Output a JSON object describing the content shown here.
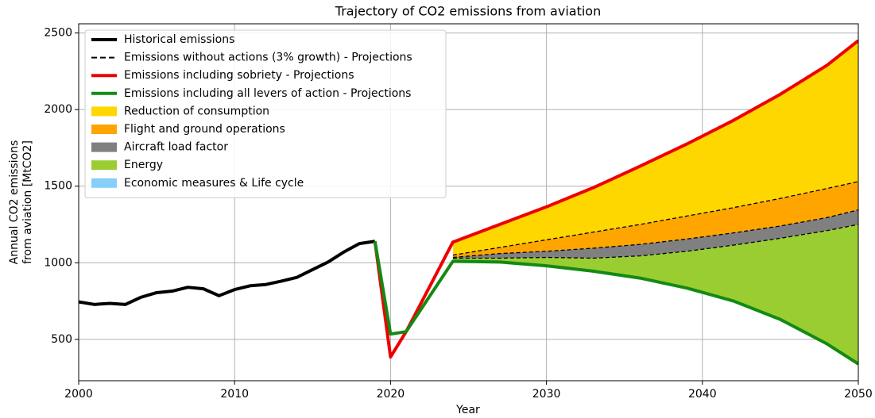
{
  "chart_data": {
    "type": "line",
    "title": "Trajectory of CO2 emissions from aviation",
    "xlabel": "Year",
    "ylabel": [
      "Annual CO2 emissions",
      "from aviation [MtCO2]"
    ],
    "xlim": [
      2000,
      2050
    ],
    "ylim": [
      230,
      2560
    ],
    "xticks": [
      2000,
      2010,
      2020,
      2030,
      2040,
      2050
    ],
    "yticks": [
      500,
      1000,
      1500,
      2000,
      2500
    ],
    "grid": true,
    "legend": "upper left",
    "series": [
      {
        "name": "Historical emissions",
        "color": "#000000",
        "style": "solid",
        "x": [
          2000,
          2001,
          2002,
          2003,
          2004,
          2005,
          2006,
          2007,
          2008,
          2009,
          2010,
          2011,
          2012,
          2013,
          2014,
          2015,
          2016,
          2017,
          2018,
          2019
        ],
        "values": [
          745,
          728,
          735,
          728,
          775,
          805,
          815,
          840,
          830,
          785,
          825,
          850,
          858,
          880,
          905,
          955,
          1005,
          1070,
          1125,
          1140
        ]
      },
      {
        "name": "Emissions without actions (3% growth) - Projections",
        "color": "#000000",
        "style": "dashed",
        "x": [
          2019,
          2020,
          2021,
          2024,
          2027,
          2030,
          2033,
          2036,
          2039,
          2042,
          2045,
          2048,
          2050
        ],
        "values": [
          null,
          null,
          null,
          1050,
          1100,
          1150,
          1200,
          1250,
          1305,
          1360,
          1420,
          1485,
          1530
        ]
      },
      {
        "name": "Emissions including sobriety - Projections",
        "color": "#ee0000",
        "style": "solid",
        "x": [
          2019,
          2020,
          2021,
          2024,
          2027,
          2030,
          2033,
          2036,
          2039,
          2042,
          2045,
          2048,
          2050
        ],
        "values": [
          1140,
          385,
          550,
          1135,
          1250,
          1365,
          1490,
          1630,
          1775,
          1930,
          2100,
          2290,
          2450
        ]
      },
      {
        "name": "Emissions including all levers of action - Projections",
        "color": "#138a13",
        "style": "solid",
        "x": [
          2019,
          2020,
          2021,
          2024,
          2027,
          2030,
          2033,
          2036,
          2039,
          2042,
          2045,
          2048,
          2050
        ],
        "values": [
          1140,
          535,
          550,
          1010,
          1005,
          980,
          945,
          900,
          835,
          750,
          630,
          470,
          340
        ]
      },
      {
        "color": "#000000",
        "style": "dashed",
        "x": [
          2019,
          2020,
          2021,
          2024,
          2027,
          2030,
          2033,
          2036,
          2039,
          2042,
          2045,
          2048,
          2050
        ],
        "values": [
          null,
          null,
          null,
          1035,
          1060,
          1075,
          1095,
          1120,
          1155,
          1195,
          1240,
          1295,
          1345
        ]
      },
      {
        "color": "#000000",
        "style": "dashed",
        "x": [
          2019,
          2020,
          2021,
          2024,
          2027,
          2030,
          2033,
          2036,
          2039,
          2042,
          2045,
          2048,
          2050
        ],
        "values": [
          null,
          null,
          null,
          1030,
          1030,
          1035,
          1030,
          1045,
          1075,
          1115,
          1160,
          1210,
          1250
        ]
      }
    ],
    "areas": [
      {
        "name": "Reduction of consumption",
        "color": "#ffd700"
      },
      {
        "name": "Flight and ground operations",
        "color": "#ffa500"
      },
      {
        "name": "Aircraft load factor",
        "color": "#808080"
      },
      {
        "name": "Energy",
        "color": "#9acd32"
      },
      {
        "name": "Economic measures & Life cycle",
        "color": "#87cefa"
      }
    ]
  }
}
